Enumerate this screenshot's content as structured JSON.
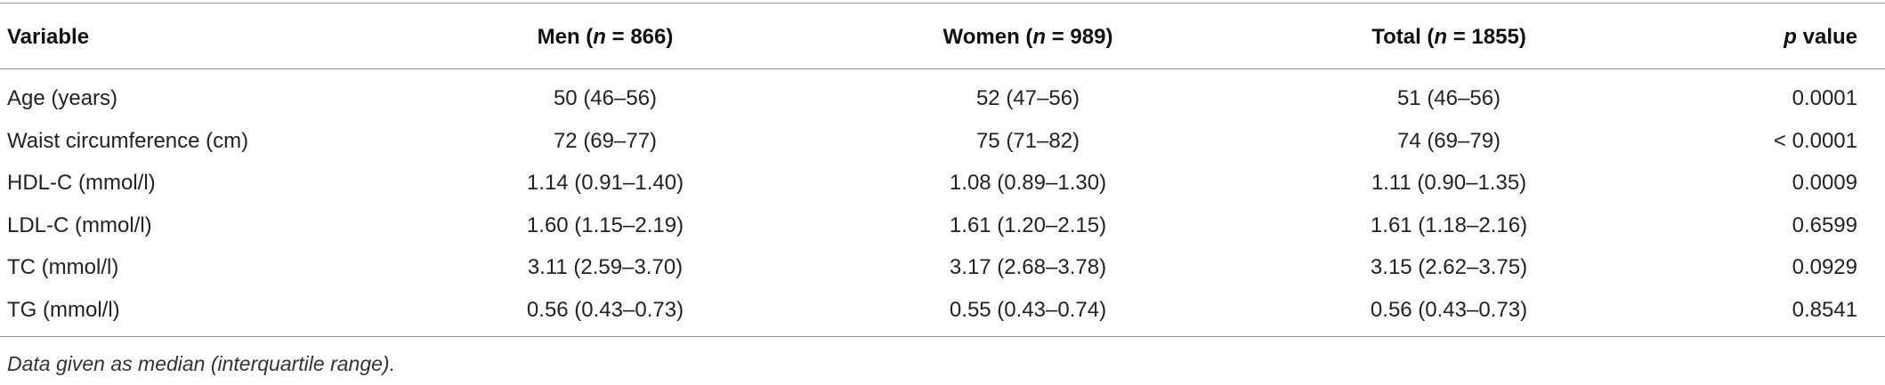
{
  "table": {
    "header": [
      [
        "Variable"
      ],
      [
        "Men (",
        "n",
        " = 866)"
      ],
      [
        "Women (",
        "n",
        " = 989)"
      ],
      [
        "Total (",
        "n",
        " = 1855)"
      ],
      [
        "p",
        " value"
      ]
    ],
    "rows": [
      [
        "Age (years)",
        "50 (46–56)",
        "52 (47–56)",
        "51 (46–56)",
        "0.0001"
      ],
      [
        "Waist circumference (cm)",
        "72 (69–77)",
        "75 (71–82)",
        "74 (69–79)",
        "< 0.0001"
      ],
      [
        "HDL-C (mmol/l)",
        "1.14 (0.91–1.40)",
        "1.08 (0.89–1.30)",
        "1.11 (0.90–1.35)",
        "0.0009"
      ],
      [
        "LDL-C (mmol/l)",
        "1.60 (1.15–2.19)",
        "1.61 (1.20–2.15)",
        "1.61 (1.18–2.16)",
        "0.6599"
      ],
      [
        "TC (mmol/l)",
        "3.11 (2.59–3.70)",
        "3.17 (2.68–3.78)",
        "3.15 (2.62–3.75)",
        "0.0929"
      ],
      [
        "TG (mmol/l)",
        "0.56 (0.43–0.73)",
        "0.55 (0.43–0.74)",
        "0.56 (0.43–0.73)",
        "0.8541"
      ]
    ],
    "footnote": "Data given as median (interquartile range)."
  }
}
